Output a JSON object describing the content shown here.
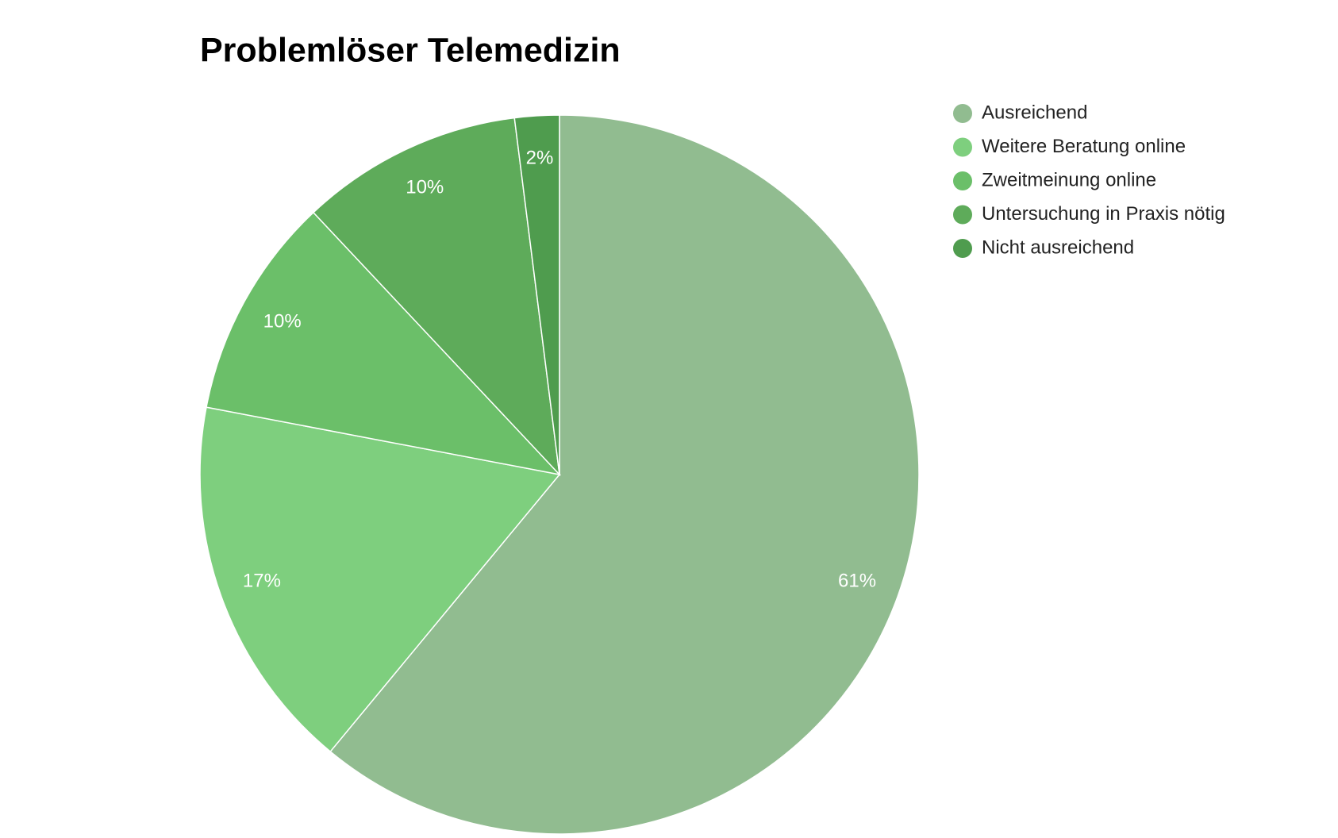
{
  "chart_data": {
    "type": "pie",
    "title": "Problemlöser Telemedizin",
    "categories": [
      "Ausreichend",
      "Weitere Beratung online",
      "Zweitmeinung online",
      "Untersuchung in Praxis nötig",
      "Nicht ausreichend"
    ],
    "values": [
      61,
      17,
      10,
      10,
      2
    ],
    "value_labels": [
      "61%",
      "17%",
      "10%",
      "10%",
      "2%"
    ],
    "colors": [
      "#91bc90",
      "#7ecf7e",
      "#6bbf69",
      "#5eab5a",
      "#4f9c4e"
    ],
    "legend": "right"
  }
}
